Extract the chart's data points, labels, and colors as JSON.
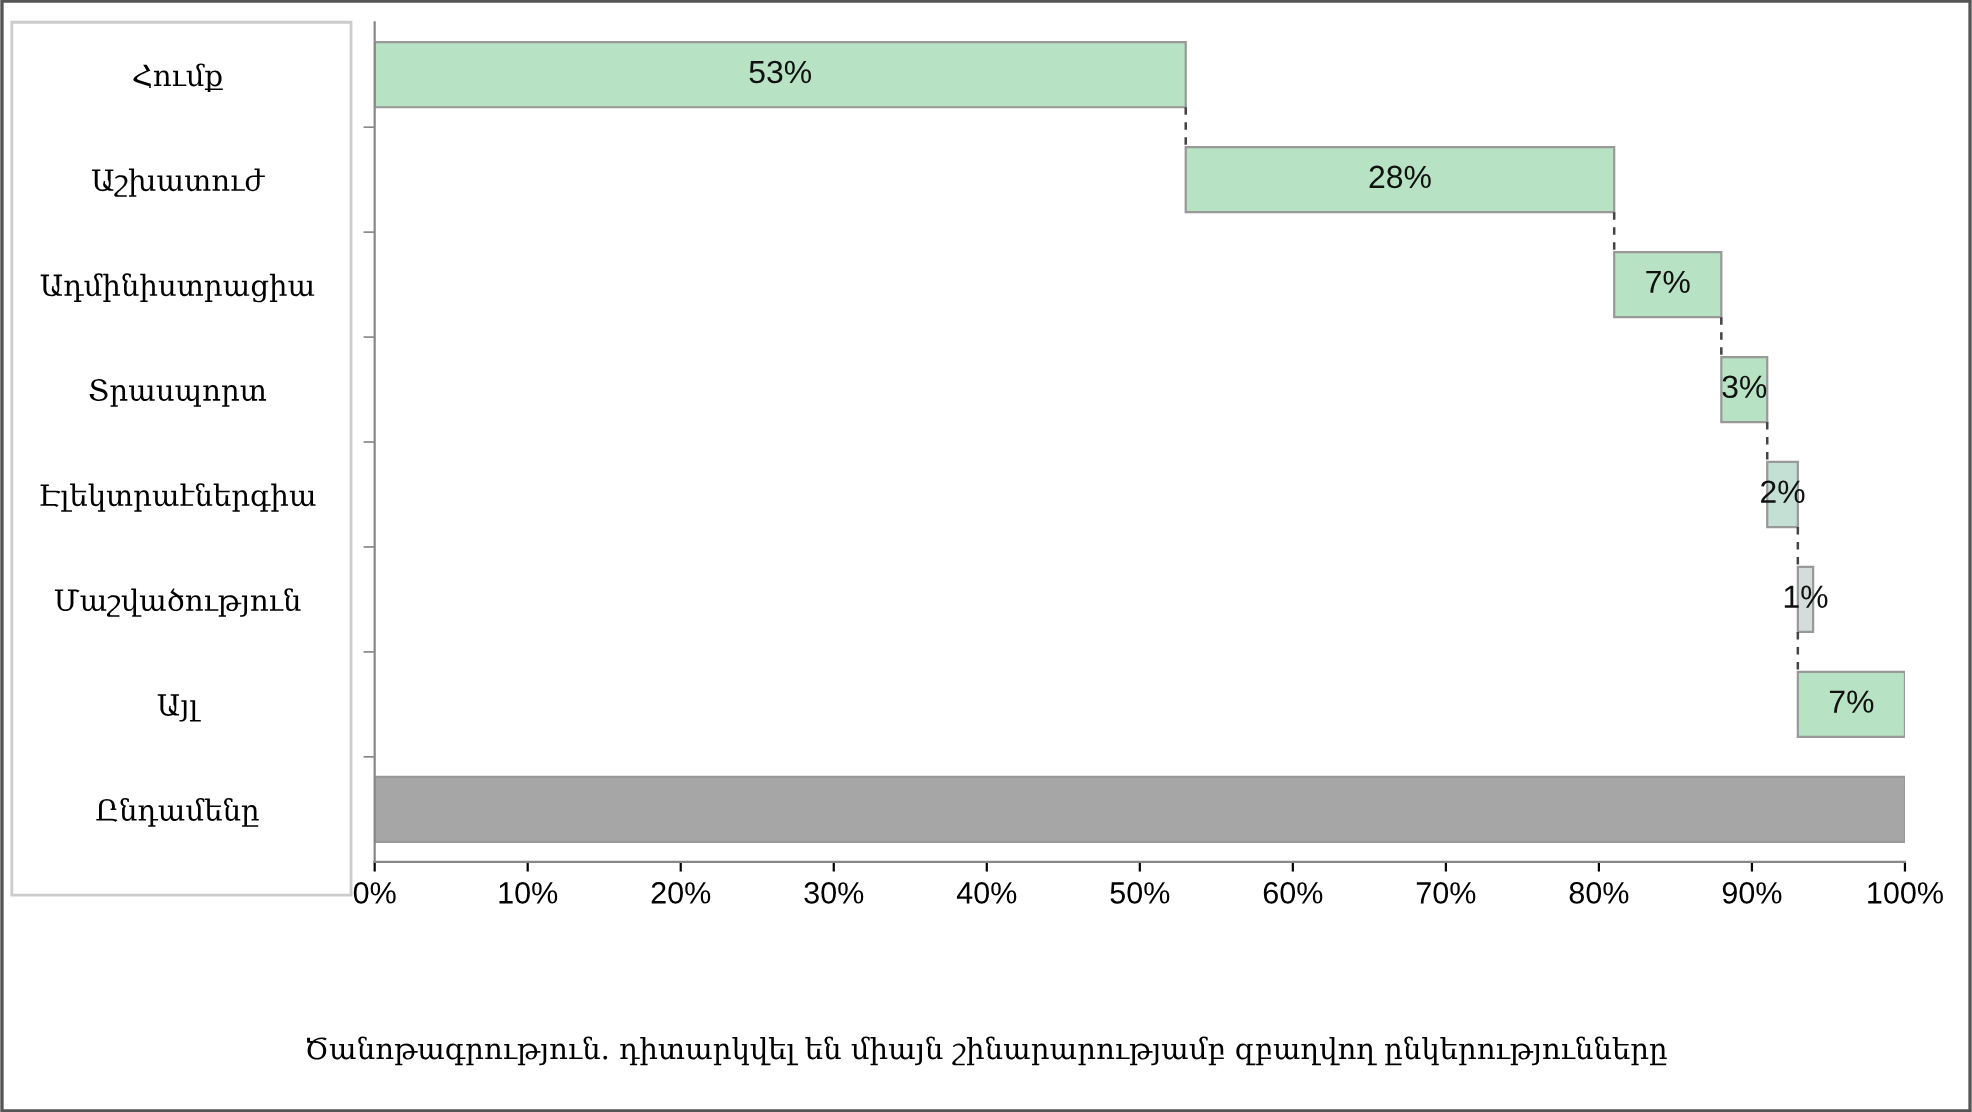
{
  "chart_data": {
    "type": "bar",
    "orientation": "horizontal",
    "categories": [
      "Հումք",
      "Աշխատուժ",
      "Ադմինիստրացիա",
      "Տրասպորտ",
      "Էլեկտրաէներգիա",
      "Մաշվածություն",
      "Այլ",
      "Ընդամենը"
    ],
    "values": [
      53,
      28,
      7,
      3,
      2,
      1,
      7,
      100
    ],
    "base": [
      0,
      53,
      81,
      88,
      91,
      93,
      93,
      0
    ],
    "colors": [
      "#b8e2c4",
      "#b8e2c4",
      "#b8e2c4",
      "#b8e2c4",
      "#c4e0d4",
      "#d4dcdc",
      "#b8e2c4",
      "#a6a6a6"
    ],
    "value_labels": [
      "53%",
      "28%",
      "7%",
      "3%",
      "2%",
      "1%",
      "7%",
      null
    ],
    "xlim": [
      0,
      100
    ],
    "xticks": [
      {
        "value": 0,
        "label": "0%"
      },
      {
        "value": 10,
        "label": "10%"
      },
      {
        "value": 20,
        "label": "20%"
      },
      {
        "value": 30,
        "label": "30%"
      },
      {
        "value": 40,
        "label": "40%"
      },
      {
        "value": 50,
        "label": "50%"
      },
      {
        "value": 60,
        "label": "60%"
      },
      {
        "value": 70,
        "label": "70%"
      },
      {
        "value": 80,
        "label": "80%"
      },
      {
        "value": 90,
        "label": "90%"
      },
      {
        "value": 100,
        "label": "100%"
      }
    ],
    "grid": false,
    "annotations": [
      "Ծանոթագրություն. դիտարկվել են միայն շինարարությամբ զբաղվող ընկերությունները"
    ]
  }
}
